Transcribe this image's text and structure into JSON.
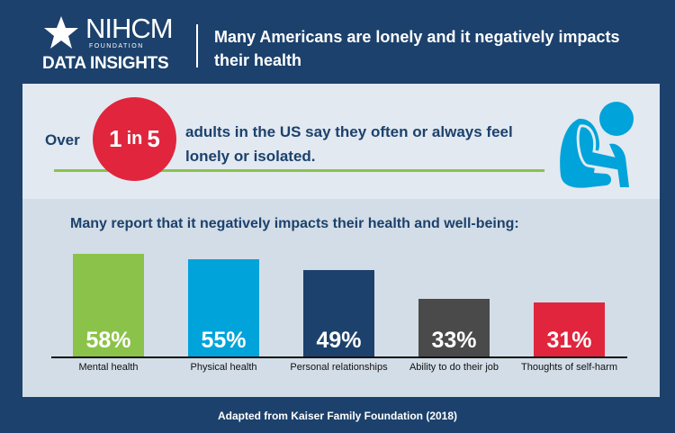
{
  "header": {
    "logo_name": "NIHCM",
    "logo_foundation": "FOUNDATION",
    "logo_tagline": "DATA INSIGHTS",
    "title": "Many Americans are lonely and it negatively impacts their health"
  },
  "stat": {
    "prefix": "Over",
    "num1": "1",
    "in": "in",
    "num2": "5",
    "text": "adults in the US say they often or always feel lonely or isolated."
  },
  "chart_data": {
    "type": "bar",
    "title": "Many report that it negatively impacts their health and well-being:",
    "categories": [
      "Mental health",
      "Physical health",
      "Personal relationships",
      "Ability to do their job",
      "Thoughts of self-harm"
    ],
    "values": [
      58,
      55,
      49,
      33,
      31
    ],
    "labels": [
      "58%",
      "55%",
      "49%",
      "33%",
      "31%"
    ],
    "colors": [
      "#8bc34a",
      "#00a3da",
      "#1c416c",
      "#4a4a4a",
      "#e0253d"
    ],
    "ylim": [
      0,
      100
    ]
  },
  "footer": "Adapted from Kaiser Family Foundation (2018)"
}
